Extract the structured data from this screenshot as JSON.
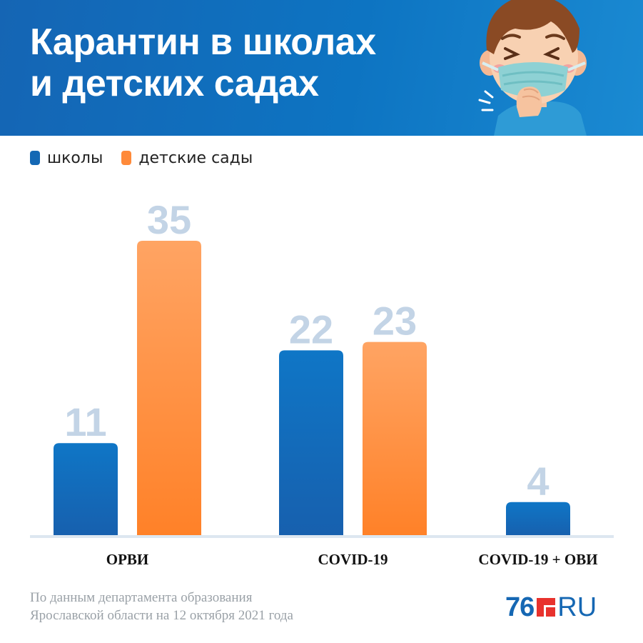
{
  "header": {
    "title_line1": "Карантин в школах",
    "title_line2": "и детских садах"
  },
  "legend": [
    {
      "label": "школы",
      "color": "#1468b4"
    },
    {
      "label": "детские сады",
      "color": "#ff8a3a"
    }
  ],
  "chart_data": {
    "type": "bar",
    "categories": [
      "ОРВИ",
      "COVID-19",
      "COVID-19 + ОВИ"
    ],
    "series": [
      {
        "name": "школы",
        "values": [
          11,
          22,
          4
        ],
        "color": "#1468b4"
      },
      {
        "name": "детские сады",
        "values": [
          35,
          23,
          null
        ],
        "color": "#ff8a3a"
      }
    ],
    "data_labels": true,
    "title": "",
    "xlabel": "",
    "ylabel": "",
    "ylim": [
      0,
      35
    ],
    "grid": false,
    "legend_position": "top-left",
    "label_color": "#c3d4e6"
  },
  "footer": {
    "source_line1": "По данным департамента образования",
    "source_line2": "Ярославской области на 12 октября 2021 года",
    "logo_number": "76",
    "logo_suffix": "RU"
  },
  "illustration": {
    "icon": "coughing-child-in-mask-icon"
  }
}
